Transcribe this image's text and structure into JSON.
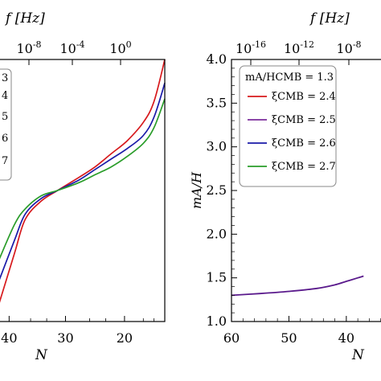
{
  "chart_data": [
    {
      "type": "line",
      "panel": "left",
      "xlabel": "N",
      "top_axis_label": "f [Hz]",
      "x_ticks": [
        "40",
        "30",
        "20"
      ],
      "top_ticks": [
        "10-8",
        "10-4",
        "100"
      ],
      "xlim": [
        43,
        12
      ],
      "legend_fragments": [
        "3",
        "4",
        "5",
        "6",
        "7"
      ],
      "legend_placement": "top-left (clipped)",
      "series": [
        {
          "color": "#d7191c",
          "points": [
            [
              43,
              0.06
            ],
            [
              40,
              0.26
            ],
            [
              38,
              0.39
            ],
            [
              35,
              0.46
            ],
            [
              32,
              0.5
            ],
            [
              28,
              0.55
            ],
            [
              25,
              0.59
            ],
            [
              22,
              0.64
            ],
            [
              19,
              0.69
            ],
            [
              16,
              0.76
            ],
            [
              14,
              0.84
            ],
            [
              12,
              1.0
            ]
          ]
        },
        {
          "color": "#1a1aa8",
          "points": [
            [
              43,
              0.15
            ],
            [
              40,
              0.31
            ],
            [
              38,
              0.41
            ],
            [
              35,
              0.47
            ],
            [
              32,
              0.5
            ],
            [
              28,
              0.54
            ],
            [
              25,
              0.58
            ],
            [
              22,
              0.62
            ],
            [
              19,
              0.66
            ],
            [
              16,
              0.71
            ],
            [
              14,
              0.78
            ],
            [
              12,
              0.91
            ]
          ]
        },
        {
          "color": "#2a9d2a",
          "points": [
            [
              43,
              0.23
            ],
            [
              40,
              0.37
            ],
            [
              38,
              0.43
            ],
            [
              35,
              0.48
            ],
            [
              32,
              0.5
            ],
            [
              28,
              0.53
            ],
            [
              25,
              0.56
            ],
            [
              22,
              0.59
            ],
            [
              19,
              0.63
            ],
            [
              16,
              0.68
            ],
            [
              14,
              0.74
            ],
            [
              12,
              0.85
            ]
          ]
        }
      ]
    },
    {
      "type": "line",
      "panel": "right",
      "xlabel": "N",
      "ylabel": "mA/H",
      "top_axis_label": "f [Hz]",
      "x_ticks": [
        "60",
        "50",
        "40"
      ],
      "y_ticks": [
        "1.0",
        "1.5",
        "2.0",
        "2.5",
        "3.0",
        "3.5",
        "4.0"
      ],
      "top_ticks": [
        "10-16",
        "10-12",
        "10-8"
      ],
      "xlim": [
        60,
        32
      ],
      "ylim": [
        1.0,
        4.0
      ],
      "legend_placement": "top-left",
      "legend_title": "mA/HCMB = 1.3",
      "series": [
        {
          "name": "ξCMB = 2.4",
          "color": "#d7191c"
        },
        {
          "name": "ξCMB = 2.5",
          "color": "#7b2c9c"
        },
        {
          "name": "ξCMB = 2.6",
          "color": "#1a1aa8"
        },
        {
          "name": "ξCMB = 2.7",
          "color": "#2a9d2a"
        }
      ],
      "curve": {
        "color": "#5a1a8c",
        "points": [
          [
            60,
            1.3
          ],
          [
            55,
            1.32
          ],
          [
            50,
            1.345
          ],
          [
            45,
            1.38
          ],
          [
            42,
            1.42
          ],
          [
            40,
            1.46
          ],
          [
            38,
            1.5
          ],
          [
            37,
            1.52
          ]
        ]
      }
    }
  ]
}
